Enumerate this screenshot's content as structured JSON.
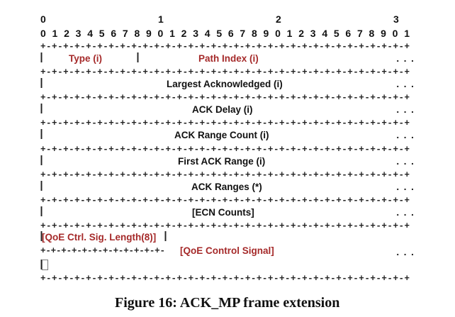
{
  "header": {
    "tens": [
      "0",
      "1",
      "2",
      "3"
    ],
    "units": "0 1 2 3 4 5 6 7 8 9 0 1 2 3 4 5 6 7 8 9 0 1 2 3 4 5 6 7 8 9 0 1"
  },
  "border": "+-+-+-+-+-+-+-+-+-+-+-+-+-+-+-+-+-+-+-+-+-+-+-+-+-+-+-+-+-+-+-+-+",
  "half_border": "+-+-+-+-+-+-+-+-+-+-+-+-",
  "pipe": "|",
  "ellipsis": "...",
  "fields": {
    "type": "Type (i)",
    "path_index": "Path Index (i)",
    "largest_ack": "Largest Acknowledged (i)",
    "ack_delay": "ACK Delay (i)",
    "ack_range_count": "ACK Range Count (i)",
    "first_ack_range": "First ACK Range (i)",
    "ack_ranges": "ACK Ranges (*)",
    "ecn_counts": "[ECN Counts]",
    "qoe_len": "[QoE Ctrl. Sig. Length(8)]",
    "qoe_signal": "[QoE Control Signal]"
  },
  "caption": "Figure 16: ACK_MP frame extension",
  "colors": {
    "accent": "#a52a2a",
    "text": "#111111"
  }
}
